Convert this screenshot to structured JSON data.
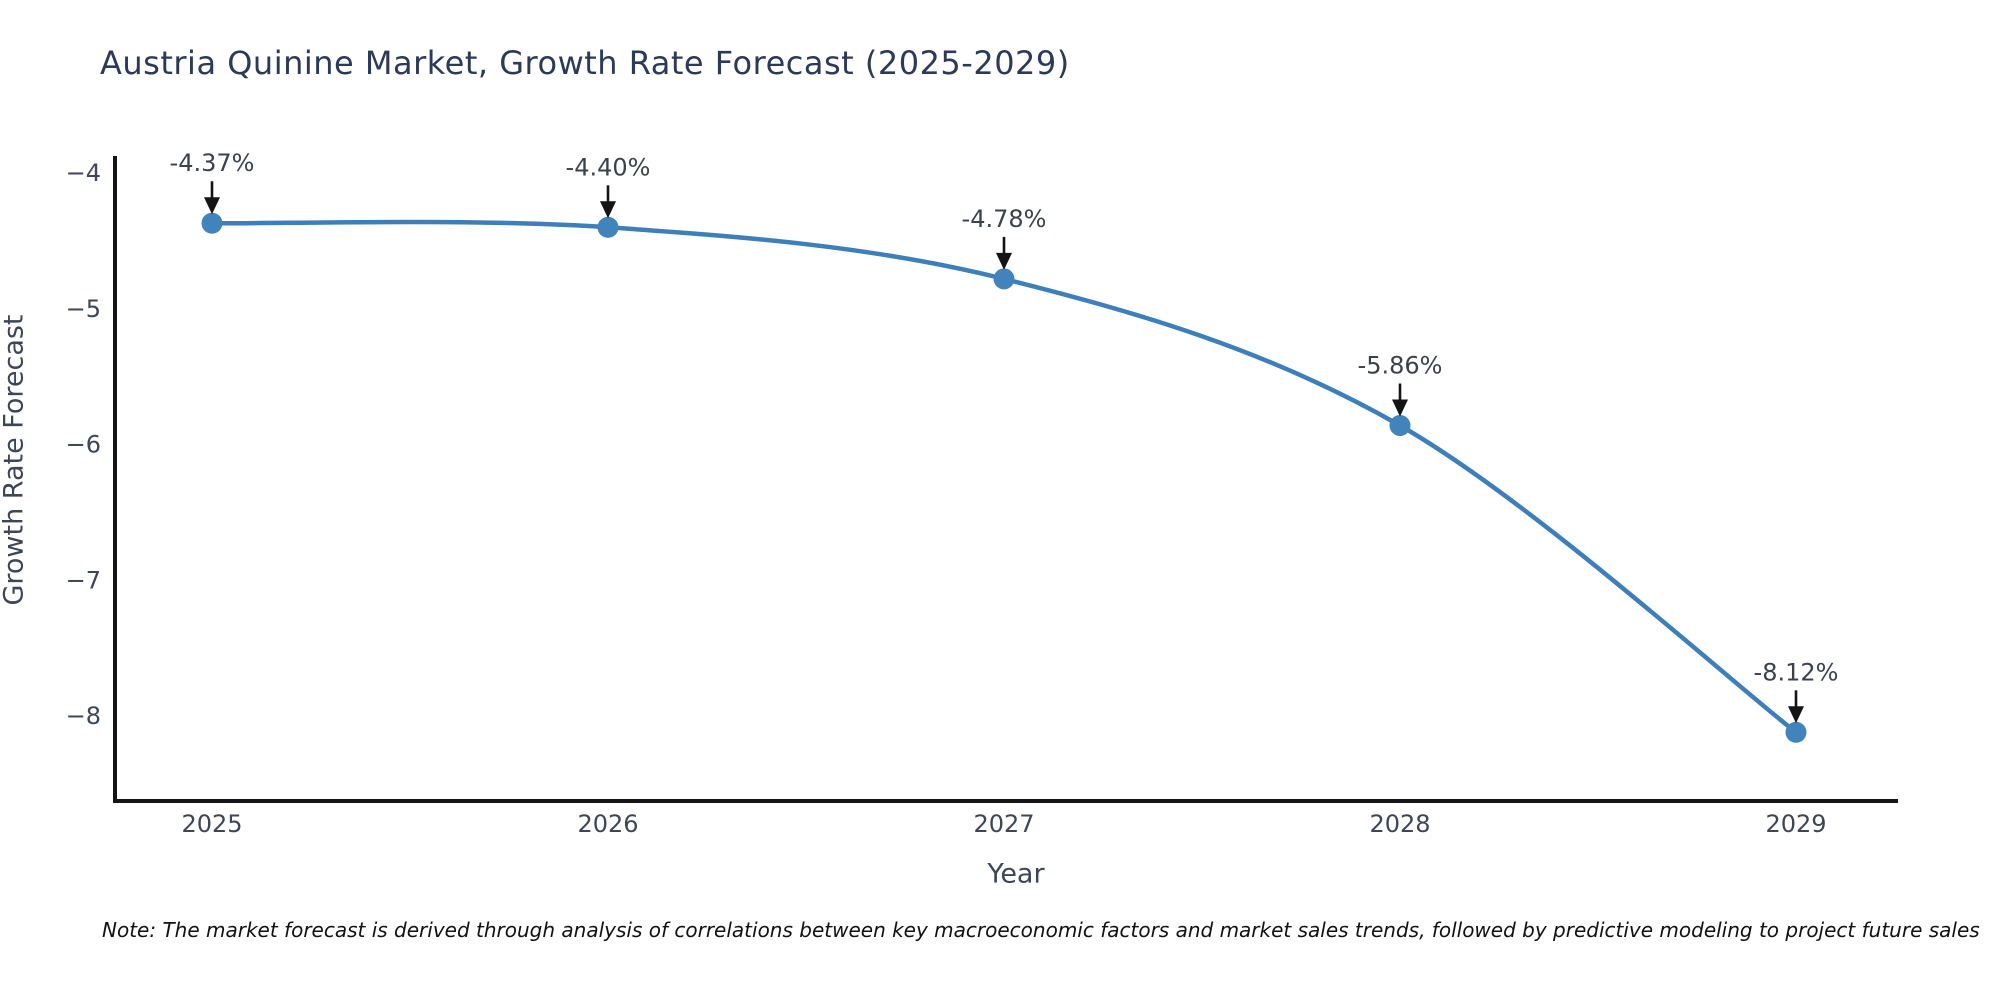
{
  "title": "Austria Quinine Market, Growth Rate Forecast (2025-2029)",
  "note": "Note: The market forecast is derived through analysis of correlations between key macroeconomic factors and market sales trends, followed by predictive modeling to project future sales",
  "chart_data": {
    "type": "line",
    "title": "Austria Quinine Market, Growth Rate Forecast (2025-2029)",
    "xlabel": "Year",
    "ylabel": "Growth Rate Forecast",
    "categories": [
      "2025",
      "2026",
      "2027",
      "2028",
      "2029"
    ],
    "values": [
      -4.37,
      -4.4,
      -4.78,
      -5.86,
      -8.12
    ],
    "point_labels": [
      "-4.37%",
      "-4.40%",
      "-4.78%",
      "-5.86%",
      "-8.12%"
    ],
    "yticks": [
      -4,
      -5,
      -6,
      -7,
      -8
    ],
    "ylim": [
      -8.6,
      -3.7
    ],
    "line_shape": "spline",
    "grid": false,
    "legend": "none",
    "annotation_style": "value-above-with-down-arrow",
    "colors": {
      "line": "#3d7fba",
      "marker": "#4184bb",
      "arrow": "#141414",
      "axis": "#151515",
      "title_text": "#2c3a58",
      "tick_text": "#3c4657",
      "label_text": "#3b424d"
    }
  }
}
